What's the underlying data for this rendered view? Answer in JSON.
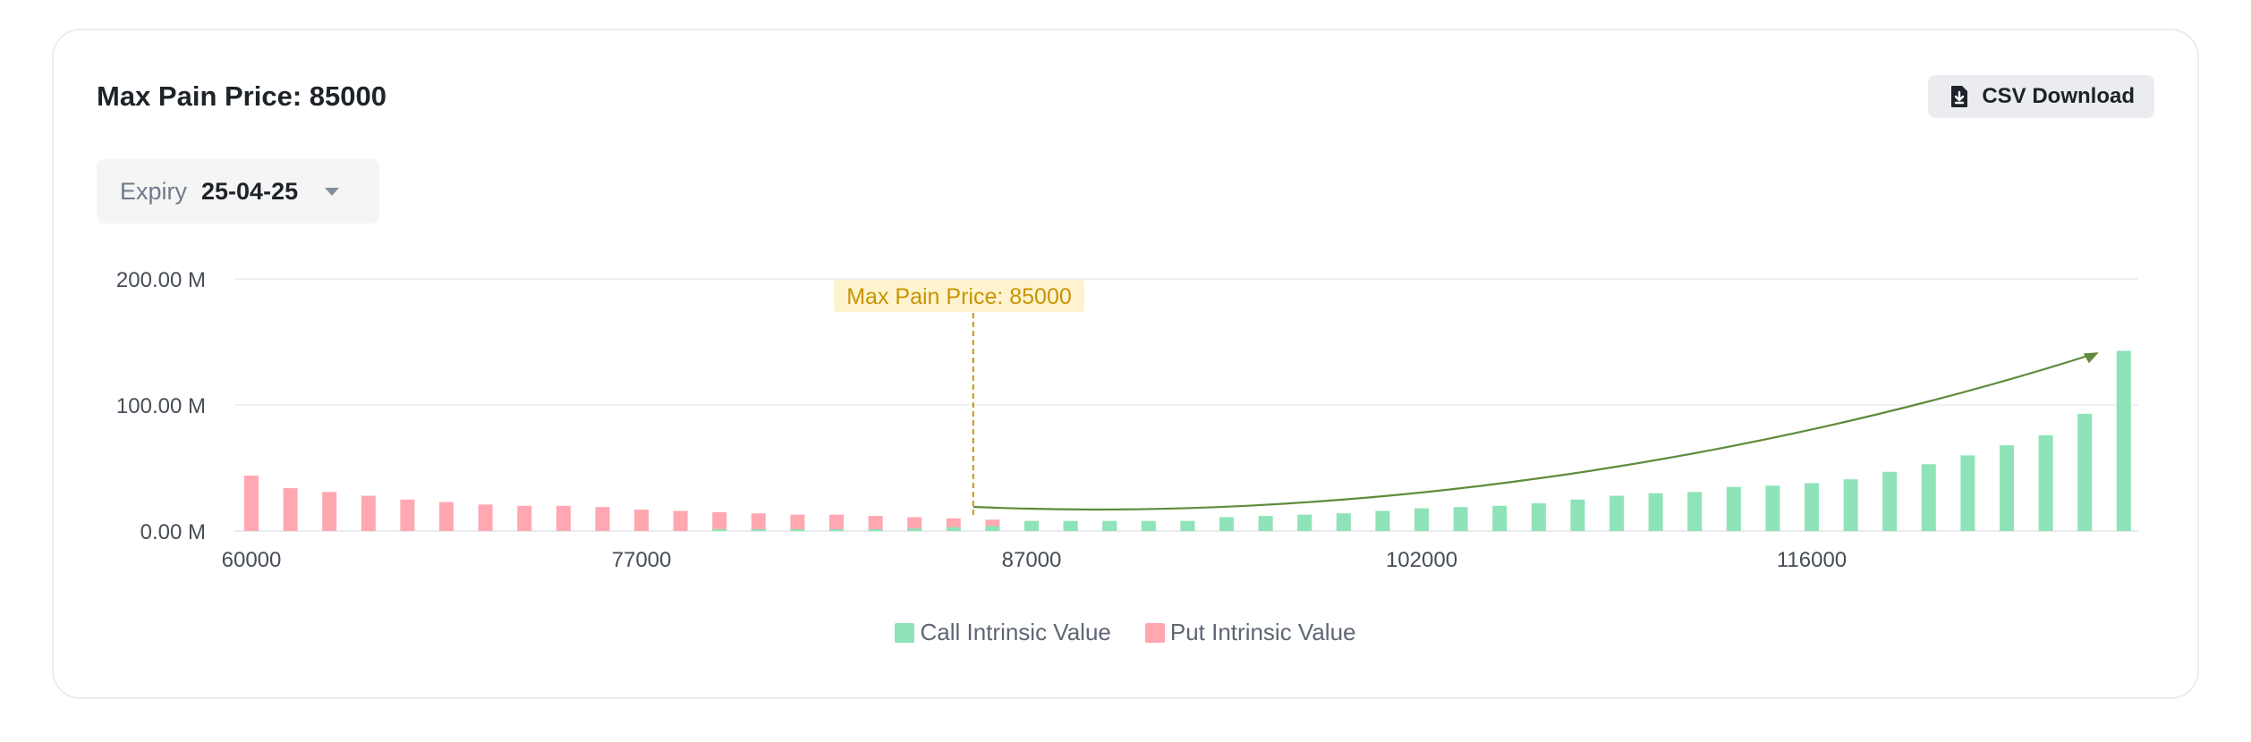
{
  "header": {
    "title": "Max Pain Price: 85000",
    "csv_label": "CSV Download"
  },
  "expiry": {
    "label": "Expiry",
    "value": "25-04-25"
  },
  "colors": {
    "call": "#8fe3b8",
    "put": "#ffa8b2",
    "marker": "#c99400",
    "marker_bg": "#fdf3cf",
    "trend": "#5f8b3c",
    "grid": "#f0f1f2",
    "axis": "#eaecef"
  },
  "legend": {
    "call": "Call Intrinsic Value",
    "put": "Put Intrinsic Value"
  },
  "chart_data": {
    "type": "bar",
    "title": "",
    "xlabel": "",
    "ylabel": "",
    "ylim": [
      0,
      200
    ],
    "yticks": [
      "200.00 M",
      "100.00 M",
      "0.00 M"
    ],
    "ytick_values": [
      200,
      100,
      0
    ],
    "x_tick_labels": [
      "60000",
      "77000",
      "87000",
      "102000",
      "116000"
    ],
    "x_tick_indices": [
      0,
      10,
      20,
      30,
      40
    ],
    "series": [
      {
        "name": "Call Intrinsic Value",
        "values": [
          0,
          0,
          0,
          0,
          0,
          0,
          0,
          0,
          0,
          0,
          0,
          0,
          1.5,
          1.5,
          1.5,
          1.5,
          1.5,
          2,
          3,
          4,
          8,
          8,
          8,
          8,
          8,
          11,
          12,
          13,
          14,
          16,
          18,
          19,
          20,
          22,
          25,
          28,
          30,
          31,
          35,
          36,
          38,
          41,
          47,
          53,
          60,
          68,
          76,
          93,
          143
        ]
      },
      {
        "name": "Put Intrinsic Value",
        "values": [
          44,
          34,
          31,
          28,
          25,
          23,
          21,
          20,
          20,
          19,
          17,
          16,
          15,
          14,
          13,
          13,
          12,
          11,
          10,
          9,
          8,
          7,
          6,
          5,
          5,
          5,
          5,
          5,
          5,
          4,
          4,
          4,
          4,
          3,
          3,
          3,
          2,
          2,
          2,
          2,
          2,
          1.5,
          1,
          1,
          1,
          1,
          1,
          1,
          0
        ]
      }
    ],
    "marker": {
      "label": "Max Pain Price: 85000",
      "index": 18
    },
    "annotation": "curved trend arrow over call values"
  }
}
